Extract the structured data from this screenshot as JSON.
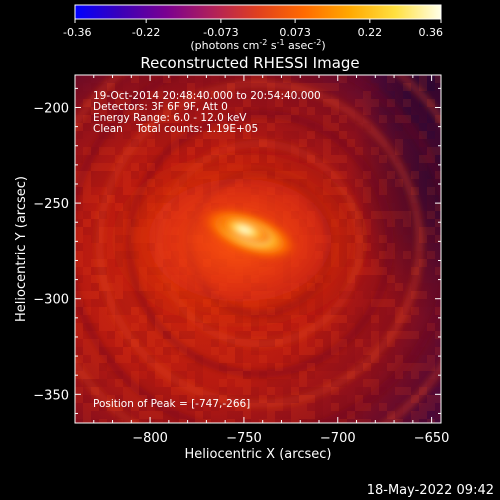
{
  "colorbar": {
    "ticks": [
      "-0.36",
      "-0.22",
      "-0.073",
      "0.073",
      "0.22",
      "0.36"
    ],
    "tick_values": [
      -0.36,
      -0.22,
      -0.073,
      0.073,
      0.22,
      0.36
    ],
    "range": [
      -0.36,
      0.36
    ],
    "units_main": "(photons cm",
    "units_sup1": "-2",
    "units_mid1": " s",
    "units_sup2": "-1",
    "units_mid2": " asec",
    "units_sup3": "-2",
    "units_end": ")",
    "stops": [
      "#0000ff",
      "#3b00b8",
      "#7a0090",
      "#b0205a",
      "#e0401e",
      "#ff6a00",
      "#ffa800",
      "#ffe040",
      "#ffffe8"
    ]
  },
  "chart_data": {
    "type": "heatmap",
    "title": "Reconstructed RHESSI Image",
    "xlabel": "Heliocentric X (arcsec)",
    "ylabel": "Heliocentric Y (arcsec)",
    "xlim": [
      -840,
      -645
    ],
    "ylim": [
      -365,
      -183
    ],
    "x_ticks": [
      -800,
      -750,
      -700,
      -650
    ],
    "x_tick_labels": [
      "−800",
      "−750",
      "−700",
      "−650"
    ],
    "y_ticks": [
      -200,
      -250,
      -300,
      -350
    ],
    "y_tick_labels": [
      "−200",
      "−250",
      "−300",
      "−350"
    ],
    "info_lines": [
      "19-Oct-2014 20:48:40.000 to 20:54:40.000",
      "Detectors: 3F 6F 9F, Att 0",
      "Energy Range: 6.0 - 12.0 keV",
      "Clean    Total counts: 1.19E+05"
    ],
    "peak_label": "Position of Peak = [-747,-266]",
    "peak": {
      "x": -747,
      "y": -266
    },
    "source_angle_deg": 20
  },
  "footer": {
    "timestamp": "18-May-2022 09:42"
  }
}
